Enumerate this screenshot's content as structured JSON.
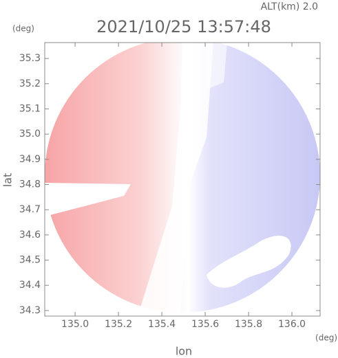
{
  "chart_data": {
    "type": "image",
    "title": "2021/10/25 13:57:48",
    "subtitle": "ALT(km) 2.0",
    "y_unit": "(deg)",
    "x_unit": "(deg)",
    "y_label": "lat",
    "x_label": "lon",
    "xlim": [
      134.86,
      136.13
    ],
    "ylim": [
      34.278,
      35.363
    ],
    "xticks": [
      {
        "value": 135.0,
        "label": "135.0"
      },
      135.2,
      135.4,
      135.6,
      135.8,
      {
        "value": 136.0,
        "label": "136.0"
      }
    ],
    "yticks": [
      34.3,
      34.4,
      34.5,
      34.6,
      34.7,
      34.8,
      34.9,
      {
        "value": 35.0,
        "label": "35.0"
      },
      35.1,
      35.2,
      35.3
    ]
  }
}
